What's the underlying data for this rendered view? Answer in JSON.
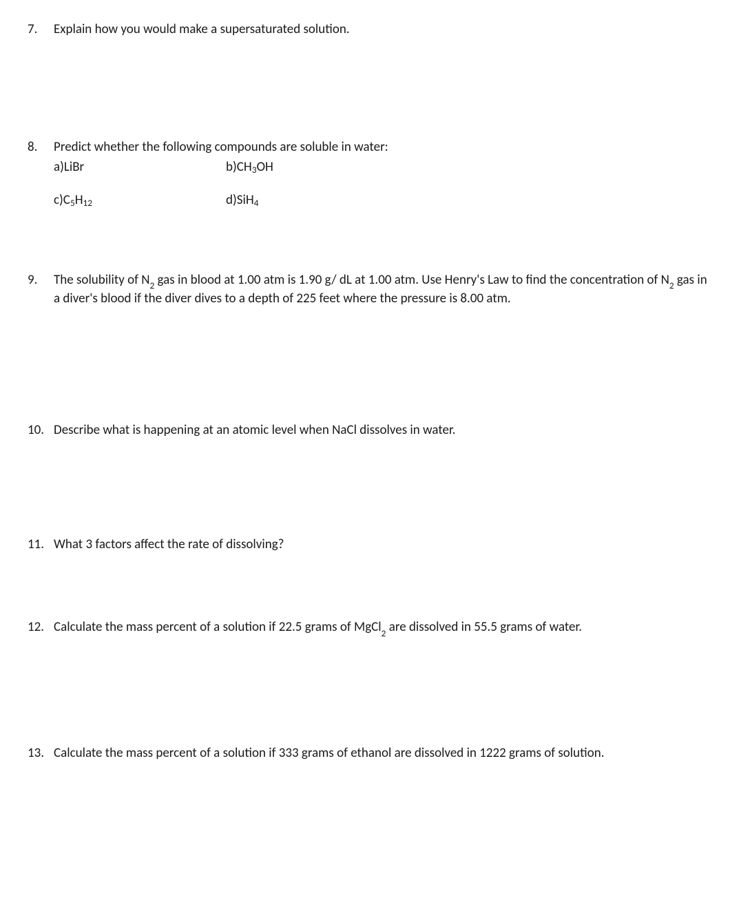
{
  "q7": {
    "num": "7.",
    "text": "Explain how you would make a supersaturated solution."
  },
  "q8": {
    "num": "8.",
    "text": "Predict whether the following compounds are soluble in water:",
    "a_label": "a) ",
    "a_text": "LiBr",
    "b_label": "b) ",
    "b_pre": "CH",
    "b_sub": "3",
    "b_post": "OH",
    "c_label": "c) ",
    "c_pre": "C",
    "c_sub1": "5",
    "c_mid": "H",
    "c_sub2": "12",
    "d_label": "d) ",
    "d_pre": "SiH",
    "d_sub": "4"
  },
  "q9": {
    "num": "9.",
    "pre1": "The solubility of N",
    "sub1": "2",
    "mid1": " gas in blood at 1.00 atm is 1.90 g/ dL at 1.00 atm. Use Henry's Law to find the concentration of N",
    "sub2": "2",
    "post": " gas in a diver's blood if the diver dives to a depth of 225 feet where the pressure is 8.00 atm."
  },
  "q10": {
    "num": "10.",
    "text": "Describe what is happening at an atomic level when NaCl dissolves in water."
  },
  "q11": {
    "num": "11.",
    "text": "What 3 factors affect the rate of dissolving?"
  },
  "q12": {
    "num": "12.",
    "pre": "Calculate the mass percent of a solution if 22.5 grams of MgCl",
    "sub": "2",
    "post": " are dissolved in 55.5 grams of water."
  },
  "q13": {
    "num": "13.",
    "text": "Calculate the mass percent of a solution if 333 grams of ethanol are dissolved in 1222 grams of solution."
  }
}
